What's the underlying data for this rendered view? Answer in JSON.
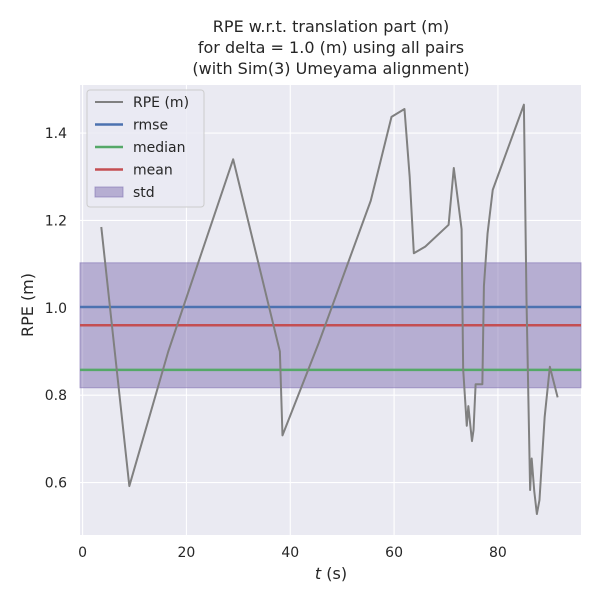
{
  "chart_data": {
    "type": "line",
    "title": [
      "RPE w.r.t. translation part (m)",
      "for delta = 1.0 (m) using all pairs",
      "(with Sim(3) Umeyama alignment)"
    ],
    "xlabel_var": "t",
    "xlabel_unit": " (s)",
    "ylabel": "RPE (m)",
    "xlim": [
      -0.5,
      96
    ],
    "ylim": [
      0.48,
      1.51
    ],
    "xticks": [
      0,
      20,
      40,
      60,
      80
    ],
    "yticks": [
      0.6,
      0.8,
      1.0,
      1.2,
      1.4
    ],
    "ytick_labels": [
      "0.6",
      "0.8",
      "1.0",
      "1.2",
      "1.4"
    ],
    "grid": true,
    "legend_position": "top-left",
    "colors": {
      "background": "#eaeaf2",
      "grid": "#ffffff",
      "rpe": "#808080",
      "rmse": "#4c72b0",
      "median": "#55a868",
      "mean": "#c44e52",
      "std": "#8172b2"
    },
    "series": [
      {
        "name": "RPE (m)",
        "x": [
          3.6,
          9.0,
          16.5,
          29.0,
          38.0,
          38.5,
          45.5,
          55.5,
          59.5,
          62.0,
          63.0,
          63.8,
          66.0,
          70.5,
          71.5,
          73.0,
          73.3,
          74.0,
          74.3,
          75.0,
          75.3,
          75.7,
          77.0,
          77.3,
          78.0,
          79.0,
          85.0,
          85.5,
          86.2,
          86.5,
          87.0,
          87.5,
          88.0,
          89.0,
          90.0,
          91.5
        ],
        "y": [
          1.185,
          0.592,
          0.9,
          1.34,
          0.9,
          0.708,
          0.92,
          1.245,
          1.437,
          1.455,
          1.3,
          1.125,
          1.14,
          1.19,
          1.32,
          1.18,
          0.86,
          0.73,
          0.775,
          0.695,
          0.72,
          0.825,
          0.825,
          1.05,
          1.17,
          1.27,
          1.465,
          1.02,
          0.583,
          0.655,
          0.58,
          0.528,
          0.56,
          0.75,
          0.865,
          0.795
        ]
      }
    ],
    "stats": {
      "rmse": 1.002,
      "median": 0.858,
      "mean": 0.96,
      "std": 0.143
    },
    "legend": [
      "RPE (m)",
      "rmse",
      "median",
      "mean",
      "std"
    ]
  }
}
